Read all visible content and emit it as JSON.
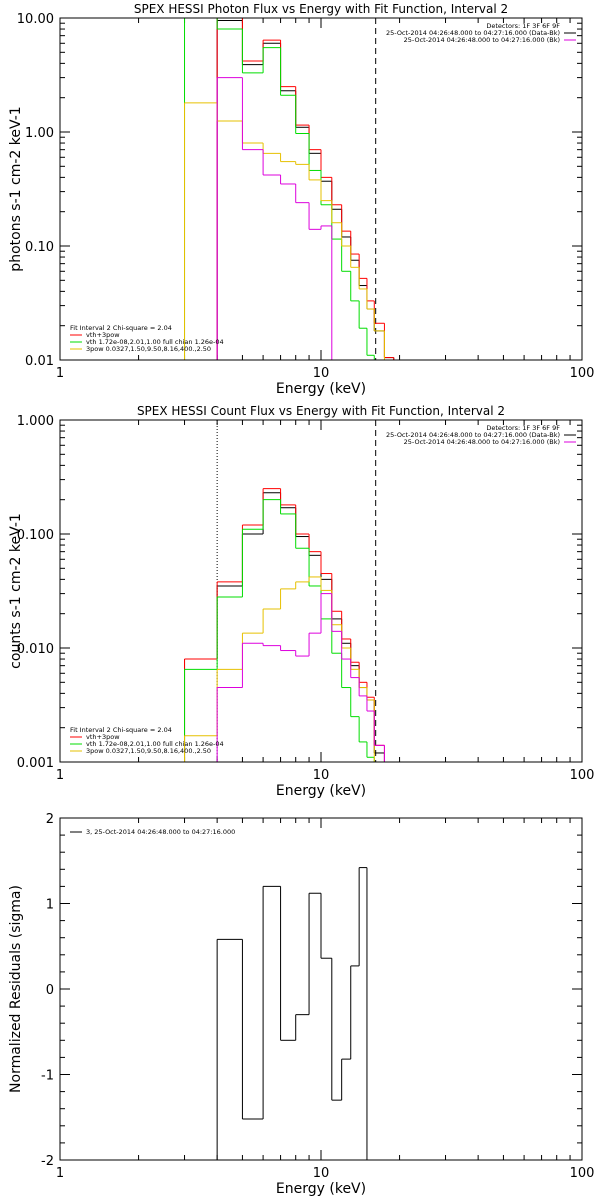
{
  "colors": {
    "black": "#000000",
    "red": "#ff0000",
    "green": "#00dd00",
    "orange": "#e6c000",
    "magenta": "#dd00dd"
  },
  "chart_data": [
    {
      "type": "line",
      "title": "SPEX HESSI Photon Flux vs Energy with Fit Function, Interval 2",
      "xlabel": "Energy (keV)",
      "ylabel": "photons s-1 cm-2 keV-1",
      "xscale": "log",
      "yscale": "log",
      "xlim": [
        1,
        100
      ],
      "ylim": [
        0.01,
        10
      ],
      "xticks": [
        "1",
        "10",
        "100"
      ],
      "yticks": [
        "0.01",
        "0.10",
        "1.00",
        "10.00"
      ],
      "ytick_values": [
        0.01,
        0.1,
        1,
        10
      ],
      "legend_right": [
        "Detectors: 1F 3F 6F 9F",
        "25-Oct-2014 04:26:48.000 to 04:27:16.000 (Data-Bk)",
        "25-Oct-2014 04:26:48.000 to 04:27:16.000 (Bk)"
      ],
      "legend_right_colors": [
        "#000000",
        "#000000",
        "#dd00dd"
      ],
      "legend_left": [
        "Fit Interval 2   Chi-square = 2.04",
        "vth+3pow",
        "vth 1.72e-08,2.01,1.00  full chian 1.26e-04",
        "3pow 0.0327,1.50,9.50,8.16,400.,2.50"
      ],
      "legend_left_colors": [
        "#000000",
        "#ff0000",
        "#00dd00",
        "#e6c000"
      ],
      "vlines": [
        {
          "x": 4.0,
          "style": "solid",
          "color": "#dd00dd"
        },
        {
          "x": 16.2,
          "style": "dashed",
          "color": "#000000"
        }
      ],
      "edges": [
        3.0,
        4.0,
        5.0,
        6.0,
        7.0,
        8.0,
        9.0,
        10.0,
        11.0,
        12.0,
        13.0,
        14.0,
        15.0,
        16.0,
        17.5,
        19.0
      ],
      "series": [
        {
          "name": "data-bk",
          "color": "#000000",
          "values": [
            null,
            9.5,
            3.9,
            6.0,
            2.3,
            1.1,
            0.65,
            0.37,
            0.21,
            0.12,
            0.075,
            0.045,
            0.028,
            0.018,
            0.0105
          ]
        },
        {
          "name": "vth+3pow",
          "color": "#ff0000",
          "values": [
            null,
            10.0,
            4.2,
            6.4,
            2.5,
            1.15,
            0.7,
            0.4,
            0.23,
            0.135,
            0.085,
            0.052,
            0.033,
            0.021,
            0.0105
          ]
        },
        {
          "name": "vth",
          "color": "#00dd00",
          "values": [
            20.0,
            8.0,
            3.3,
            5.5,
            2.1,
            0.97,
            0.46,
            0.23,
            0.115,
            0.06,
            0.033,
            0.019,
            0.011,
            0.006,
            null
          ]
        },
        {
          "name": "3pow",
          "color": "#e6c000",
          "values": [
            1.8,
            1.25,
            0.8,
            0.65,
            0.55,
            0.52,
            0.38,
            0.25,
            0.16,
            0.1,
            0.065,
            0.042,
            0.028,
            0.018,
            null
          ]
        },
        {
          "name": "bk",
          "color": "#dd00dd",
          "values": [
            null,
            3.0,
            0.7,
            0.42,
            0.35,
            0.24,
            0.14,
            0.15,
            null,
            null,
            null,
            null,
            null,
            null,
            null
          ]
        }
      ]
    },
    {
      "type": "line",
      "title": "SPEX HESSI Count Flux vs Energy with Fit Function, Interval 2",
      "xlabel": "Energy (keV)",
      "ylabel": "counts s-1 cm-2 keV-1",
      "xscale": "log",
      "yscale": "log",
      "xlim": [
        1,
        100
      ],
      "ylim": [
        0.001,
        1
      ],
      "xticks": [
        "1",
        "10",
        "100"
      ],
      "yticks": [
        "0.001",
        "0.010",
        "0.100",
        "1.000"
      ],
      "ytick_values": [
        0.001,
        0.01,
        0.1,
        1
      ],
      "legend_right": [
        "Detectors: 1F 3F 6F 9F",
        "25-Oct-2014 04:26:48.000 to 04:27:16.000 (Data-Bk)",
        "25-Oct-2014 04:26:48.000 to 04:27:16.000 (Bk)"
      ],
      "legend_right_colors": [
        "#000000",
        "#000000",
        "#dd00dd"
      ],
      "legend_left": [
        "Fit Interval 2   Chi-square = 2.04",
        "vth+3pow",
        "vth 1.72e-08,2.01,1.00  full chian 1.26e-04",
        "3pow 0.0327,1.50,9.50,8.16,400.,2.50"
      ],
      "legend_left_colors": [
        "#000000",
        "#ff0000",
        "#00dd00",
        "#e6c000"
      ],
      "vlines": [
        {
          "x": 4.0,
          "style": "dotted",
          "color": "#000000"
        },
        {
          "x": 16.2,
          "style": "dashed",
          "color": "#000000"
        }
      ],
      "edges": [
        3.0,
        4.0,
        5.0,
        6.0,
        7.0,
        8.0,
        9.0,
        10.0,
        11.0,
        12.0,
        13.0,
        14.0,
        15.0,
        16.0,
        17.5,
        19.0
      ],
      "series": [
        {
          "name": "data-bk",
          "color": "#000000",
          "values": [
            0.008,
            0.035,
            0.1,
            0.23,
            0.17,
            0.095,
            0.065,
            0.04,
            0.018,
            0.011,
            0.007,
            0.0045,
            0.0035,
            0.0012,
            0.0008
          ]
        },
        {
          "name": "vth+3pow",
          "color": "#ff0000",
          "values": [
            0.008,
            0.038,
            0.12,
            0.25,
            0.18,
            0.1,
            0.07,
            0.045,
            0.021,
            0.012,
            0.0075,
            0.005,
            0.0037,
            0.0014,
            0.0009
          ]
        },
        {
          "name": "vth",
          "color": "#00dd00",
          "values": [
            0.0065,
            0.028,
            0.11,
            0.2,
            0.15,
            0.075,
            0.035,
            0.018,
            0.009,
            0.0045,
            0.0025,
            0.0015,
            0.0011,
            null,
            null
          ]
        },
        {
          "name": "3pow",
          "color": "#e6c000",
          "values": [
            0.0017,
            0.0065,
            0.0135,
            0.022,
            0.033,
            0.038,
            0.042,
            0.032,
            0.016,
            0.01,
            0.0065,
            0.0045,
            0.0035,
            null,
            null
          ]
        },
        {
          "name": "bk",
          "color": "#dd00dd",
          "values": [
            null,
            0.0045,
            0.011,
            0.0105,
            0.0095,
            0.0085,
            0.0135,
            0.03,
            0.014,
            0.008,
            0.0055,
            0.0038,
            0.0028,
            0.0014,
            0.0008
          ]
        }
      ]
    },
    {
      "type": "line",
      "title": "",
      "xlabel": "Energy (keV)",
      "ylabel": "Normalized Residuals (sigma)",
      "xscale": "log",
      "yscale": "linear",
      "xlim": [
        1,
        100
      ],
      "ylim": [
        -2,
        2
      ],
      "xticks": [
        "1",
        "10",
        "100"
      ],
      "yticks": [
        "-2",
        "-1",
        "0",
        "1",
        "2"
      ],
      "ytick_values": [
        -2,
        -1,
        0,
        1,
        2
      ],
      "legend_left": [
        "3, 25-Oct-2014 04:26:48.000 to 04:27:16.000"
      ],
      "legend_left_colors": [
        "#000000"
      ],
      "edges": [
        4.0,
        5.0,
        6.0,
        7.0,
        8.0,
        9.0,
        10.0,
        11.0,
        12.0,
        13.0,
        14.0,
        15.0,
        16.2
      ],
      "series": [
        {
          "name": "residuals",
          "color": "#000000",
          "values": [
            0.58,
            -1.52,
            1.2,
            -0.6,
            -0.3,
            1.12,
            0.36,
            -1.3,
            -0.82,
            0.27,
            1.42,
            null
          ]
        }
      ]
    }
  ]
}
